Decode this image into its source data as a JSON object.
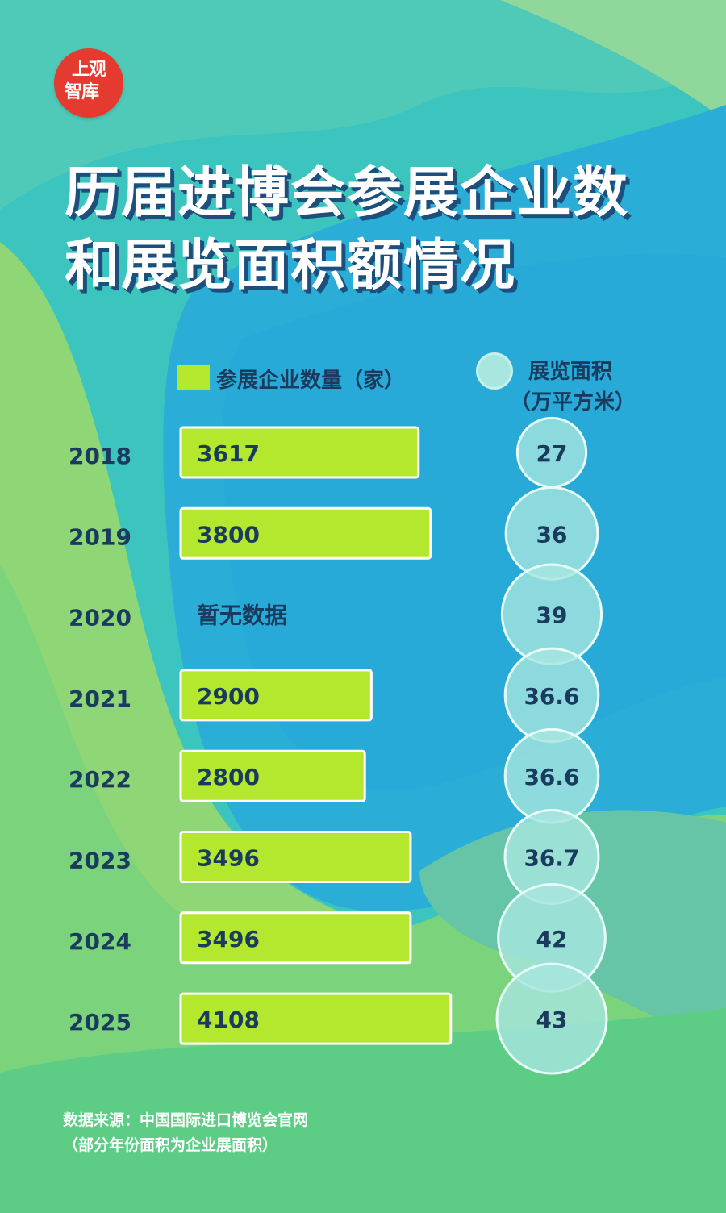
{
  "logo": {
    "line1": "上观",
    "line2": "智库"
  },
  "title": {
    "line1": "历届进博会参展企业数",
    "line2": "和展览面积额情况"
  },
  "legend": {
    "bar_label": "参展企业数量（家）",
    "circle_label": "展览面积",
    "circle_unit": "（万平方米）"
  },
  "source": {
    "line1": "数据来源：中国国际进口博览会官网",
    "line2": "（部分年份面积为企业展面积）"
  },
  "colors": {
    "bar_fill": "#b4e82f",
    "bar_border": "#ffffff",
    "circle_fill": "#a8e6e0",
    "text_dark": "#1a3b5d",
    "logo_red": "#e53a2f"
  },
  "chart_data": {
    "type": "bar",
    "categories": [
      "2018",
      "2019",
      "2020",
      "2021",
      "2022",
      "2023",
      "2024",
      "2025"
    ],
    "series": [
      {
        "name": "参展企业数量（家）",
        "values": [
          3617,
          3800,
          null,
          2900,
          2800,
          3496,
          3496,
          4108
        ]
      },
      {
        "name": "展览面积（万平方米）",
        "values": [
          27,
          36,
          39,
          36.6,
          36.6,
          36.7,
          42,
          43
        ]
      }
    ],
    "bar_labels": [
      "3617",
      "3800",
      "暂无数据",
      "2900",
      "2800",
      "3496",
      "3496",
      "4108"
    ],
    "circle_labels": [
      "27",
      "36",
      "39",
      "36.6",
      "36.6",
      "36.7",
      "42",
      "43"
    ]
  }
}
